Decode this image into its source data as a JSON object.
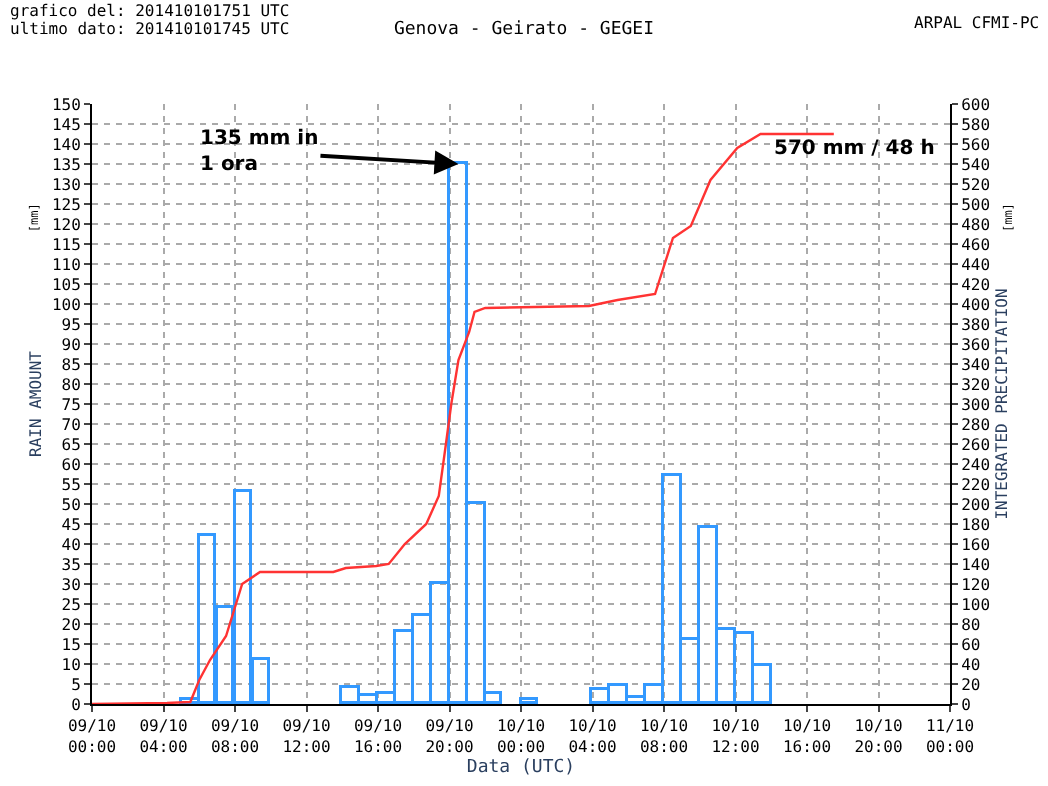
{
  "chart_data": {
    "type": "bar",
    "title": "Genova - Geirato - GEGEI",
    "xlabel": "Data (UTC)",
    "ylabel": "RAIN AMOUNT",
    "y2label": "INTEGRATED PRECIPITATION",
    "annotations": [
      "grafico del: 201410101751 UTC",
      "ultimo dato: 201410101745 UTC",
      "ARPAL CFMI-PC",
      "[mm]",
      "[mm]",
      {
        "text": "135 mm in\n1 ora",
        "x": "2014-10-09T20:30",
        "y": 135
      },
      "570 mm / 48 h"
    ],
    "xlim": [
      "2014-10-09T00:00",
      "2014-10-11T00:00"
    ],
    "xticks": [
      {
        "value": "2014-10-09T00:00",
        "label": "09/10\n00:00"
      },
      {
        "value": "2014-10-09T04:00",
        "label": "09/10\n04:00"
      },
      {
        "value": "2014-10-09T08:00",
        "label": "09/10\n08:00"
      },
      {
        "value": "2014-10-09T12:00",
        "label": "09/10\n12:00"
      },
      {
        "value": "2014-10-09T16:00",
        "label": "09/10\n16:00"
      },
      {
        "value": "2014-10-09T20:00",
        "label": "09/10\n20:00"
      },
      {
        "value": "2014-10-10T00:00",
        "label": "10/10\n00:00"
      },
      {
        "value": "2014-10-10T04:00",
        "label": "10/10\n04:00"
      },
      {
        "value": "2014-10-10T08:00",
        "label": "10/10\n08:00"
      },
      {
        "value": "2014-10-10T12:00",
        "label": "10/10\n12:00"
      },
      {
        "value": "2014-10-10T16:00",
        "label": "10/10\n16:00"
      },
      {
        "value": "2014-10-10T20:00",
        "label": "10/10\n20:00"
      },
      {
        "value": "2014-10-11T00:00",
        "label": "11/10\n00:00"
      }
    ],
    "ylim": [
      0,
      150
    ],
    "yticks": [
      0,
      5,
      10,
      15,
      20,
      25,
      30,
      35,
      40,
      45,
      50,
      55,
      60,
      65,
      70,
      75,
      80,
      85,
      90,
      95,
      100,
      105,
      110,
      115,
      120,
      125,
      130,
      135,
      140,
      145,
      150
    ],
    "y2lim": [
      0,
      600
    ],
    "y2ticks": [
      0,
      20,
      40,
      60,
      80,
      100,
      120,
      140,
      160,
      180,
      200,
      220,
      240,
      260,
      280,
      300,
      320,
      340,
      360,
      380,
      400,
      420,
      440,
      460,
      480,
      500,
      520,
      540,
      560,
      580,
      600
    ],
    "grid": true,
    "series": [
      {
        "color": "#3399ff",
        "x": [
          "2014-10-09T05:30",
          "2014-10-09T06:30",
          "2014-10-09T07:30",
          "2014-10-09T08:30",
          "2014-10-09T09:30",
          "2014-10-09T14:30",
          "2014-10-09T15:30",
          "2014-10-09T16:30",
          "2014-10-09T17:30",
          "2014-10-09T18:30",
          "2014-10-09T19:30",
          "2014-10-09T20:30",
          "2014-10-09T21:30",
          "2014-10-09T22:30",
          "2014-10-10T00:30",
          "2014-10-10T04:30",
          "2014-10-10T05:30",
          "2014-10-10T06:30",
          "2014-10-10T07:30",
          "2014-10-10T08:30",
          "2014-10-10T09:30",
          "2014-10-10T10:30",
          "2014-10-10T11:30",
          "2014-10-10T12:30",
          "2014-10-10T13:30"
        ],
        "values": [
          1,
          42,
          24,
          53,
          11,
          4,
          2,
          2.5,
          18,
          22,
          30,
          135,
          50,
          2.5,
          1,
          3.5,
          4.5,
          1.5,
          4.5,
          57,
          16,
          44,
          18.5,
          17.5,
          9.5
        ]
      },
      {
        "type": "line",
        "axis": "y2",
        "color": "#ff3333",
        "x": [
          "2014-10-09T00:00",
          "2014-10-09T04:12",
          "2014-10-09T05:30",
          "2014-10-09T06:00",
          "2014-10-09T06:36",
          "2014-10-09T07:30",
          "2014-10-09T08:24",
          "2014-10-09T09:24",
          "2014-10-09T13:30",
          "2014-10-09T14:12",
          "2014-10-09T15:54",
          "2014-10-09T16:36",
          "2014-10-09T17:30",
          "2014-10-09T18:42",
          "2014-10-09T19:24",
          "2014-10-09T19:48",
          "2014-10-09T20:06",
          "2014-10-09T20:30",
          "2014-10-09T21:06",
          "2014-10-09T21:24",
          "2014-10-09T22:00",
          "2014-10-10T03:48",
          "2014-10-10T05:24",
          "2014-10-10T07:30",
          "2014-10-10T08:30",
          "2014-10-10T09:30",
          "2014-10-10T10:36",
          "2014-10-10T12:06",
          "2014-10-10T13:24",
          "2014-10-10T17:30"
        ],
        "values": [
          0,
          1,
          2,
          24,
          44,
          68,
          120,
          132,
          132,
          136,
          138,
          140,
          160,
          180,
          208,
          260,
          300,
          344,
          372,
          392,
          396,
          398,
          404,
          410,
          466,
          478,
          524,
          556,
          570,
          570
        ]
      }
    ]
  }
}
